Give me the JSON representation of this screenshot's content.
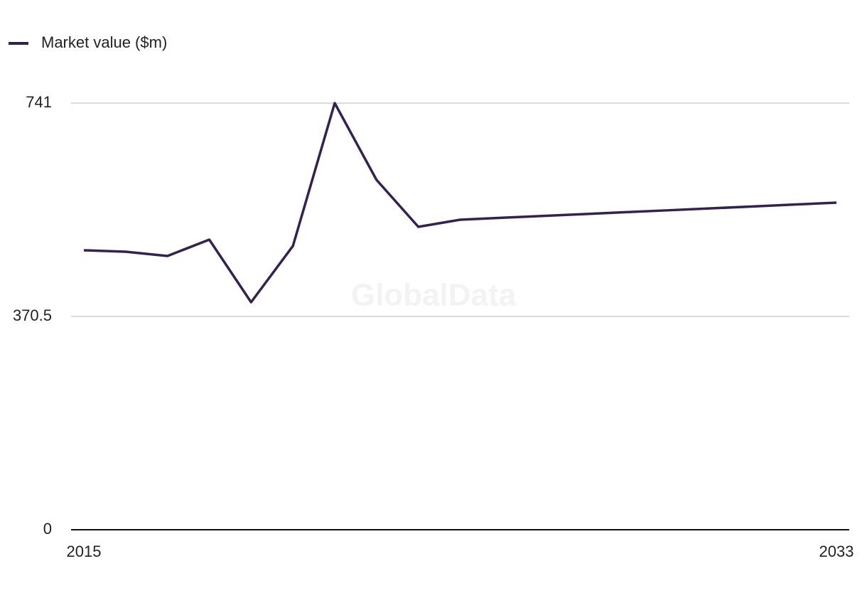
{
  "chart_data": {
    "type": "line",
    "watermark": "GlobalData",
    "x": [
      2015,
      2016,
      2017,
      2018,
      2019,
      2020,
      2021,
      2022,
      2023,
      2024,
      2025,
      2026,
      2027,
      2028,
      2029,
      2030,
      2031,
      2032,
      2033
    ],
    "series": [
      {
        "name": "Market value ($m)",
        "color": "#35214f",
        "values": [
          485.4,
          482.9,
          475.5,
          503.9,
          395.2,
          492.8,
          741,
          607.6,
          526.1,
          538.5,
          541.8,
          545.1,
          548.4,
          551.7,
          554.9,
          558.2,
          561.5,
          564.8,
          568.1
        ]
      }
    ],
    "xlim": [
      2015,
      2033
    ],
    "xticks": [
      2015,
      2033
    ],
    "ylim": [
      0,
      741
    ],
    "yticks": [
      0,
      370.5,
      741
    ],
    "grid": true,
    "legend": "top-left"
  }
}
